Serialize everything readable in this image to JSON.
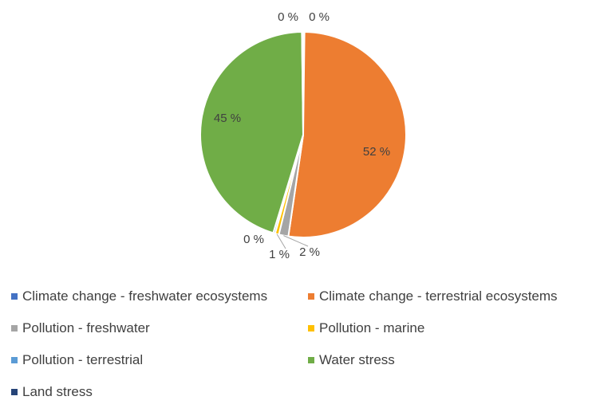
{
  "chart_data": {
    "type": "pie",
    "title": "",
    "slices": [
      {
        "name": "Climate change - freshwater ecosystems",
        "value": 0.2,
        "label": "0 %",
        "color": "#4472C4"
      },
      {
        "name": "Climate change - terrestrial ecosystems",
        "value": 52,
        "label": "52 %",
        "color": "#ED7D31"
      },
      {
        "name": "Pollution - freshwater",
        "value": 1.5,
        "label": "2 %",
        "color": "#A5A5A5"
      },
      {
        "name": "Pollution - marine",
        "value": 0.6,
        "label": "1 %",
        "color": "#FFC000"
      },
      {
        "name": "Pollution - terrestrial",
        "value": 0.3,
        "label": "0 %",
        "color": "#5B9BD5"
      },
      {
        "name": "Water stress",
        "value": 45,
        "label": "45 %",
        "color": "#70AD47"
      },
      {
        "name": "Land stress",
        "value": 0.2,
        "label": "0 %",
        "color": "#264478"
      }
    ],
    "legend_position": "bottom"
  }
}
